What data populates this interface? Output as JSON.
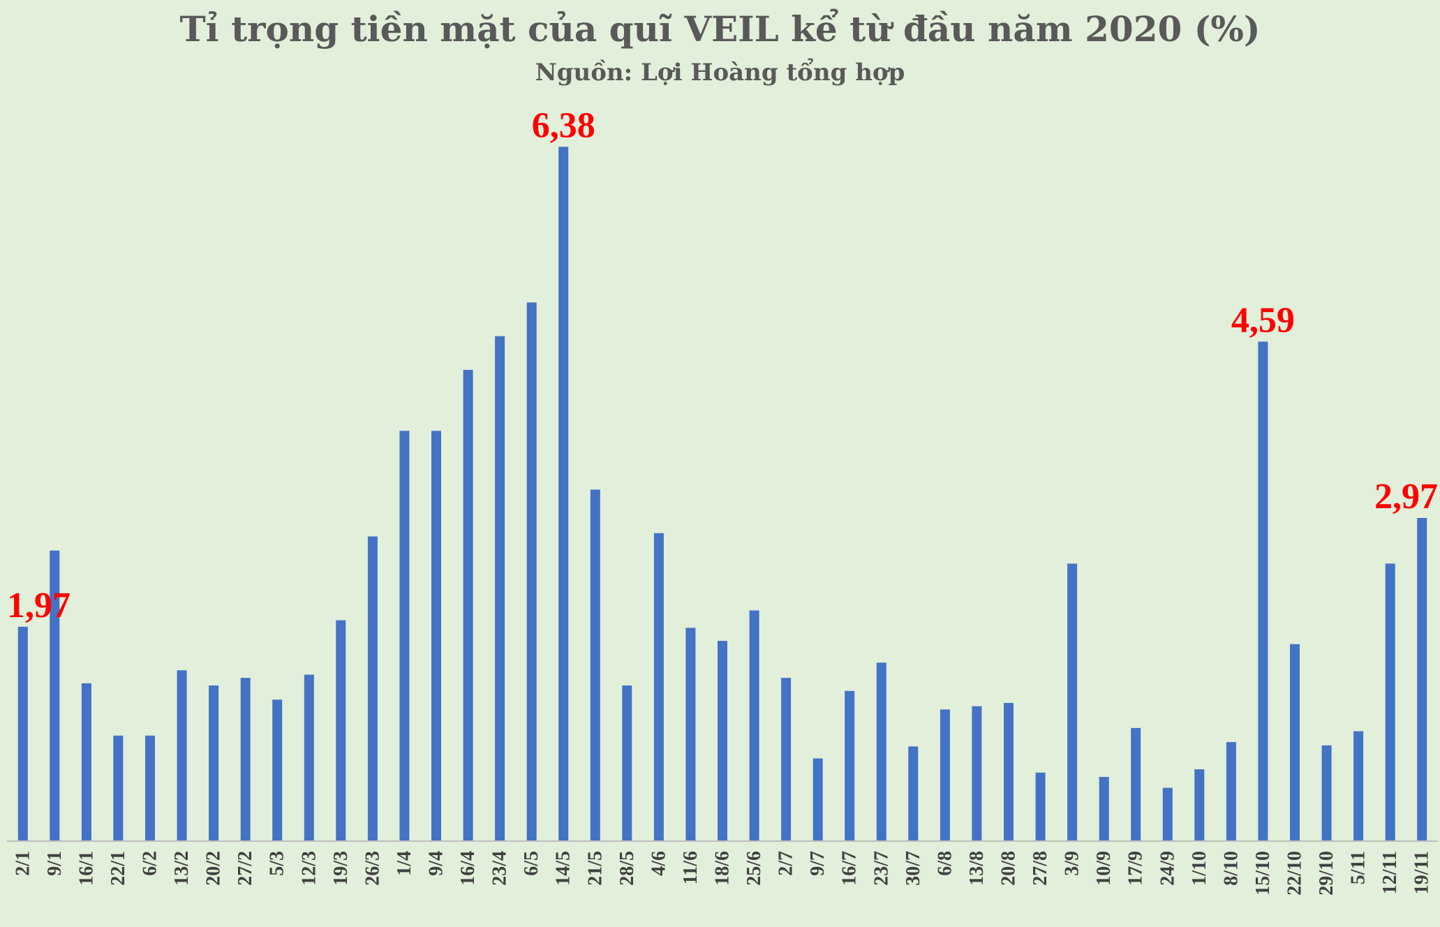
{
  "chart_data": {
    "type": "bar",
    "title": "Tỉ trọng tiền mặt của quĩ VEIL kể từ đầu năm 2020 (%)",
    "subtitle": "Nguồn: Lợi Hoàng tổng hợp",
    "xlabel": "",
    "ylabel": "",
    "ylim": [
      0,
      6.6
    ],
    "grid": false,
    "bar_color": "#4472c4",
    "label_color": "#ff0000",
    "categories": [
      "2/1",
      "9/1",
      "16/1",
      "22/1",
      "6/2",
      "13/2",
      "20/2",
      "27/2",
      "5/3",
      "12/3",
      "19/3",
      "26/3",
      "1/4",
      "9/4",
      "16/4",
      "23/4",
      "6/5",
      "14/5",
      "21/5",
      "28/5",
      "4/6",
      "11/6",
      "18/6",
      "25/6",
      "2/7",
      "9/7",
      "16/7",
      "23/7",
      "30/7",
      "6/8",
      "13/8",
      "20/8",
      "27/8",
      "3/9",
      "10/9",
      "17/9",
      "24/9",
      "1/10",
      "8/10",
      "15/10",
      "22/10",
      "29/10",
      "5/11",
      "12/11",
      "19/11"
    ],
    "values": [
      1.97,
      2.67,
      1.45,
      0.97,
      0.97,
      1.57,
      1.43,
      1.5,
      1.3,
      1.53,
      2.03,
      2.8,
      3.77,
      3.77,
      4.33,
      4.64,
      4.95,
      6.38,
      3.23,
      1.43,
      2.83,
      1.96,
      1.84,
      2.12,
      1.5,
      0.76,
      1.38,
      1.64,
      0.87,
      1.21,
      1.24,
      1.27,
      0.63,
      2.55,
      0.59,
      1.04,
      0.49,
      0.66,
      0.91,
      4.59,
      1.81,
      0.88,
      1.01,
      2.55,
      2.97
    ],
    "data_labels": [
      {
        "category": "2/1",
        "text": "1,97"
      },
      {
        "category": "14/5",
        "text": "6,38"
      },
      {
        "category": "15/10",
        "text": "4,59"
      },
      {
        "category": "19/11",
        "text": "2,97"
      }
    ]
  }
}
